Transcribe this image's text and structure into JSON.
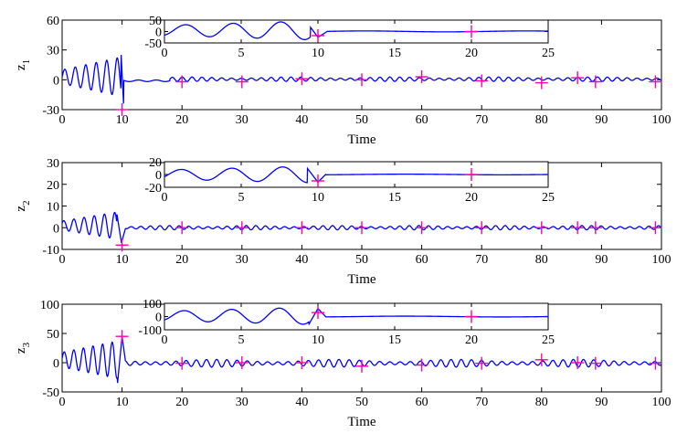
{
  "chart_data": [
    {
      "type": "line",
      "ylabel": "z",
      "ylabel_sub": "1",
      "xlabel": "Time",
      "xlim": [
        0,
        100
      ],
      "ylim": [
        -30,
        60
      ],
      "xticks": [
        "0",
        "10",
        "20",
        "30",
        "40",
        "50",
        "60",
        "70",
        "80",
        "90",
        "100"
      ],
      "yticks": [
        "-30",
        "0",
        "30",
        "60"
      ],
      "line_color": "#0000ff",
      "marker_color": "#ff00aa",
      "markers": [
        {
          "x": 10,
          "y": -30
        },
        {
          "x": 20,
          "y": -2
        },
        {
          "x": 30,
          "y": -2
        },
        {
          "x": 40,
          "y": 1
        },
        {
          "x": 50,
          "y": 0
        },
        {
          "x": 60,
          "y": 3
        },
        {
          "x": 70,
          "y": -1
        },
        {
          "x": 80,
          "y": -3
        },
        {
          "x": 86,
          "y": 2
        },
        {
          "x": 89,
          "y": -2
        },
        {
          "x": 99,
          "y": -2
        }
      ],
      "inset": {
        "xlim": [
          0,
          25
        ],
        "ylim": [
          -50,
          50
        ],
        "xticks": [
          "0",
          "5",
          "10",
          "15",
          "20",
          "25"
        ],
        "yticks": [
          "50",
          "0",
          "-50"
        ],
        "markers": [
          {
            "x": 10,
            "y": -18
          },
          {
            "x": 20,
            "y": 0
          }
        ]
      }
    },
    {
      "type": "line",
      "ylabel": "z",
      "ylabel_sub": "2",
      "xlabel": "Time",
      "xlim": [
        0,
        100
      ],
      "ylim": [
        -10,
        30
      ],
      "xticks": [
        "0",
        "10",
        "20",
        "30",
        "40",
        "50",
        "60",
        "70",
        "80",
        "90",
        "100"
      ],
      "yticks": [
        "-10",
        "0",
        "10",
        "20",
        "30"
      ],
      "line_color": "#0000ff",
      "marker_color": "#ff00aa",
      "markers": [
        {
          "x": 10,
          "y": -8
        },
        {
          "x": 20,
          "y": 0
        },
        {
          "x": 30,
          "y": 0
        },
        {
          "x": 40,
          "y": 0
        },
        {
          "x": 50,
          "y": 0
        },
        {
          "x": 60,
          "y": 0
        },
        {
          "x": 70,
          "y": 0
        },
        {
          "x": 80,
          "y": 0
        },
        {
          "x": 86,
          "y": 0
        },
        {
          "x": 89,
          "y": 0
        },
        {
          "x": 99,
          "y": 0
        }
      ],
      "inset": {
        "xlim": [
          0,
          25
        ],
        "ylim": [
          -20,
          20
        ],
        "xticks": [
          "0",
          "5",
          "10",
          "15",
          "20",
          "25"
        ],
        "yticks": [
          "20",
          "0",
          "-20"
        ],
        "markers": [
          {
            "x": 10,
            "y": -10
          },
          {
            "x": 20,
            "y": 0
          }
        ]
      }
    },
    {
      "type": "line",
      "ylabel": "z",
      "ylabel_sub": "3",
      "xlabel": "Time",
      "xlim": [
        0,
        100
      ],
      "ylim": [
        -50,
        100
      ],
      "xticks": [
        "0",
        "10",
        "20",
        "30",
        "40",
        "50",
        "60",
        "70",
        "80",
        "90",
        "100"
      ],
      "yticks": [
        "-50",
        "0",
        "50",
        "100"
      ],
      "line_color": "#0000ff",
      "marker_color": "#ff00aa",
      "markers": [
        {
          "x": 10,
          "y": 45
        },
        {
          "x": 20,
          "y": -1
        },
        {
          "x": 30,
          "y": 0
        },
        {
          "x": 40,
          "y": 0
        },
        {
          "x": 50,
          "y": -6
        },
        {
          "x": 60,
          "y": -4
        },
        {
          "x": 70,
          "y": -1
        },
        {
          "x": 80,
          "y": 5
        },
        {
          "x": 86,
          "y": 0
        },
        {
          "x": 89,
          "y": -1
        },
        {
          "x": 99,
          "y": -1
        }
      ],
      "inset": {
        "xlim": [
          0,
          25
        ],
        "ylim": [
          -100,
          100
        ],
        "xticks": [
          "0",
          "5",
          "10",
          "15",
          "20",
          "25"
        ],
        "yticks": [
          "100",
          "0",
          "-100"
        ],
        "markers": [
          {
            "x": 10,
            "y": 30
          },
          {
            "x": 20,
            "y": 0
          }
        ]
      }
    }
  ]
}
